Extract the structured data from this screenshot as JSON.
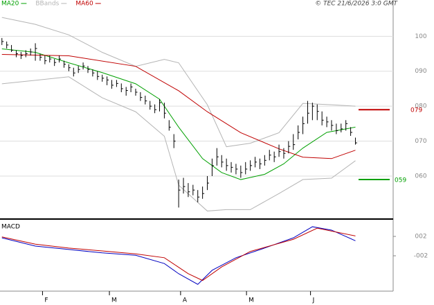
{
  "copyright": "© TEC 21/6/2026 3:0 GMT",
  "chart_data": [
    {
      "type": "ohlc",
      "ylim": [
        48.3,
        107.4
      ],
      "xlim": [
        -0.4,
        81.9
      ],
      "yticks": [
        {
          "value": 100,
          "label": "100"
        },
        {
          "value": 90,
          "label": "090"
        },
        {
          "value": 80,
          "label": "080"
        },
        {
          "value": 70,
          "label": "070"
        },
        {
          "value": 60,
          "label": "060"
        }
      ],
      "grid": true,
      "bar_color": "#000000",
      "high": [
        99.5,
        98.5,
        97.5,
        96,
        95.5,
        96,
        96.5,
        98,
        95,
        94.5,
        94.5,
        93.5,
        94.5,
        93,
        92,
        91,
        91.5,
        92.5,
        91.5,
        90.5,
        90,
        89,
        88.5,
        87.5,
        87.5,
        86.5,
        85.5,
        86.5,
        85,
        84,
        83,
        81.5,
        80.5,
        82,
        81,
        76,
        72,
        59,
        59.5,
        58,
        57.5,
        56,
        57,
        60,
        65,
        68,
        66,
        65,
        64,
        63.5,
        63,
        64,
        64.5,
        65.5,
        65,
        66,
        67.5,
        67,
        69,
        68,
        70,
        72,
        74.5,
        77,
        81.5,
        81,
        80.5,
        78.5,
        77,
        76,
        75,
        75,
        76,
        74,
        71
      ],
      "low": [
        97.5,
        96.5,
        95.5,
        94,
        93.5,
        94,
        94.5,
        93,
        93,
        92,
        92.5,
        91.5,
        92.5,
        91,
        90,
        88.5,
        89.5,
        90.5,
        89.5,
        88.5,
        87.5,
        87,
        86,
        85,
        85.5,
        84,
        83,
        84,
        83,
        81.5,
        80.5,
        79,
        78,
        78.5,
        76.5,
        73,
        68,
        51,
        55,
        54,
        54.5,
        52.5,
        53.5,
        56,
        60,
        63,
        62.5,
        61.5,
        61,
        60.5,
        59.5,
        60.5,
        61.5,
        62.5,
        62,
        63,
        64.5,
        64,
        65.5,
        65,
        66.5,
        67.5,
        70.5,
        72,
        75,
        76,
        76,
        74.5,
        74,
        73,
        72,
        72.5,
        73,
        71.5,
        69
      ],
      "close": [
        98.5,
        97.5,
        96,
        95,
        94.5,
        95,
        95.5,
        96.5,
        94,
        93,
        93.5,
        92.5,
        93.5,
        92,
        91,
        89.5,
        90.5,
        91.5,
        90.5,
        89.5,
        88.5,
        88,
        87.5,
        86,
        86.5,
        85,
        84.5,
        85.5,
        84,
        82.5,
        81.5,
        80,
        79,
        81,
        78,
        74,
        70,
        56,
        57,
        55.5,
        56,
        54,
        55,
        58,
        63,
        65.5,
        64,
        63,
        62.5,
        62,
        61,
        62,
        63,
        64,
        63.5,
        64.5,
        66,
        65.5,
        67,
        66.5,
        68.5,
        69,
        72.5,
        75,
        78,
        80,
        78.5,
        76,
        75.5,
        74.5,
        73,
        73.5,
        75,
        72.5,
        69.5
      ],
      "series": [
        {
          "name": "MA20",
          "color": "#00a000",
          "x": [
            0,
            7,
            14,
            21,
            28,
            33,
            37,
            42,
            46,
            50,
            55,
            59,
            63,
            68,
            74
          ],
          "values": [
            96.4,
            95.4,
            92.4,
            89.6,
            86.4,
            82,
            74,
            65,
            61,
            59,
            60.5,
            63.5,
            68,
            72.5,
            74
          ]
        },
        {
          "name": "BBands",
          "color": "#b4b4b4",
          "x": [
            0,
            7,
            14,
            21,
            28,
            34,
            37,
            43,
            47,
            52,
            58,
            63,
            69,
            74
          ],
          "upper": [
            105.4,
            103.4,
            100.4,
            95.4,
            91.4,
            93.4,
            92.4,
            80.4,
            68.4,
            69.4,
            72.4,
            80.8,
            80.4,
            80
          ],
          "lower": [
            86.4,
            87.4,
            88.4,
            82.4,
            78.4,
            71.4,
            57.4,
            50,
            50.4,
            50.4,
            55,
            59,
            59.4,
            64.4
          ]
        },
        {
          "name": "MA60",
          "color": "#c00000",
          "x": [
            0,
            14,
            28,
            37,
            43,
            50,
            58,
            63,
            69,
            74
          ],
          "values": [
            94.8,
            94.4,
            91.4,
            84.4,
            78.4,
            72.4,
            67.8,
            65.4,
            65,
            67.4
          ]
        }
      ],
      "levels": [
        {
          "value": 79,
          "label": "079",
          "color": "#c00000"
        },
        {
          "value": 59,
          "label": "059",
          "color": "#00a000"
        }
      ]
    },
    {
      "type": "line",
      "title": "MACD",
      "ylim": [
        -9.3,
        5.3
      ],
      "xlim": [
        -0.4,
        81.9
      ],
      "yticks": [
        {
          "value": 2,
          "label": "002"
        },
        {
          "value": -2,
          "label": "-002"
        }
      ],
      "xticks": [
        {
          "value": 8.5,
          "label": "F"
        },
        {
          "value": 22.5,
          "label": "M"
        },
        {
          "value": 37.4,
          "label": "A"
        },
        {
          "value": 51.2,
          "label": "M"
        },
        {
          "value": 64.6,
          "label": "J"
        }
      ],
      "series": [
        {
          "color": "#0000c0",
          "x": [
            0,
            7,
            14,
            21,
            28,
            34,
            37,
            41,
            44,
            49,
            55,
            61,
            65,
            69,
            74
          ],
          "values": [
            1.7,
            0,
            -0.7,
            -1.4,
            -1.9,
            -3.6,
            -5.7,
            -7.9,
            -5,
            -2.4,
            -0.4,
            1.7,
            4,
            3.3,
            1.1
          ]
        },
        {
          "color": "#c00000",
          "x": [
            0,
            7,
            14,
            21,
            28,
            34,
            39,
            42,
            46,
            52,
            61,
            66,
            74
          ],
          "values": [
            1.9,
            0.4,
            -0.4,
            -1,
            -1.6,
            -2.4,
            -5.7,
            -7.1,
            -4.3,
            -1.1,
            1.4,
            3.7,
            2.1
          ]
        }
      ]
    }
  ]
}
